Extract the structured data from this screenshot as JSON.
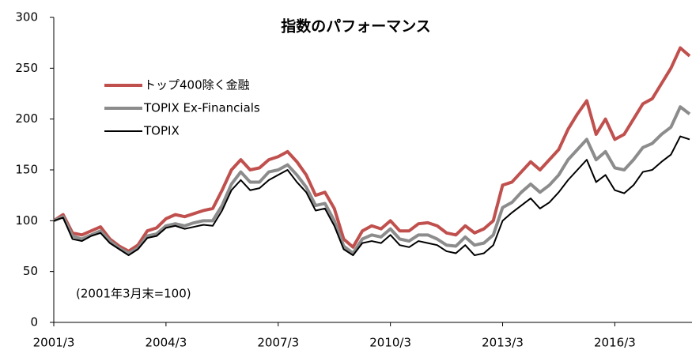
{
  "chart_data": {
    "type": "line",
    "title": "指数のパフォーマンス",
    "annotation": "(2001年3月末=100)",
    "x": [
      "2001/3",
      "2001/6",
      "2001/9",
      "2001/12",
      "2002/3",
      "2002/6",
      "2002/9",
      "2002/12",
      "2003/3",
      "2003/6",
      "2003/9",
      "2003/12",
      "2004/3",
      "2004/6",
      "2004/9",
      "2004/12",
      "2005/3",
      "2005/6",
      "2005/9",
      "2005/12",
      "2006/3",
      "2006/6",
      "2006/9",
      "2006/12",
      "2007/3",
      "2007/6",
      "2007/9",
      "2007/12",
      "2008/3",
      "2008/6",
      "2008/9",
      "2008/12",
      "2009/3",
      "2009/6",
      "2009/9",
      "2009/12",
      "2010/3",
      "2010/6",
      "2010/9",
      "2010/12",
      "2011/3",
      "2011/6",
      "2011/9",
      "2011/12",
      "2012/3",
      "2012/6",
      "2012/9",
      "2012/12",
      "2013/3",
      "2013/6",
      "2013/9",
      "2013/12",
      "2014/3",
      "2014/6",
      "2014/9",
      "2014/12",
      "2015/3",
      "2015/6",
      "2015/9",
      "2015/12",
      "2016/3",
      "2016/6",
      "2016/9",
      "2016/12",
      "2017/3",
      "2017/6",
      "2017/9",
      "2017/12",
      "2018/3"
    ],
    "xticks": [
      "2001/3",
      "2004/3",
      "2007/3",
      "2010/3",
      "2013/3",
      "2016/3"
    ],
    "ylim": [
      0,
      300
    ],
    "yticks": [
      0,
      50,
      100,
      150,
      200,
      250,
      300
    ],
    "legend": "upper left",
    "series": [
      {
        "name": "トップ400除く金融",
        "color": "#c0504d",
        "values": [
          100,
          106,
          88,
          86,
          90,
          94,
          82,
          75,
          70,
          76,
          90,
          93,
          102,
          106,
          104,
          107,
          110,
          112,
          130,
          150,
          160,
          150,
          152,
          160,
          163,
          168,
          158,
          145,
          125,
          128,
          112,
          82,
          74,
          90,
          95,
          92,
          100,
          90,
          90,
          97,
          98,
          95,
          88,
          86,
          95,
          88,
          92,
          100,
          135,
          138,
          148,
          158,
          150,
          160,
          170,
          190,
          205,
          218,
          185,
          200,
          180,
          185,
          200,
          215,
          220,
          235,
          250,
          270,
          262
        ]
      },
      {
        "name": "TOPIX Ex-Financials",
        "color": "#8c8c8c",
        "values": [
          100,
          104,
          85,
          82,
          86,
          90,
          80,
          73,
          68,
          73,
          85,
          87,
          95,
          97,
          95,
          98,
          100,
          100,
          115,
          136,
          148,
          138,
          138,
          148,
          150,
          155,
          145,
          133,
          115,
          117,
          100,
          75,
          68,
          82,
          86,
          84,
          92,
          82,
          80,
          86,
          86,
          82,
          76,
          75,
          84,
          76,
          78,
          86,
          113,
          118,
          128,
          136,
          128,
          135,
          145,
          160,
          170,
          180,
          160,
          168,
          152,
          150,
          160,
          172,
          176,
          185,
          192,
          212,
          205
        ]
      },
      {
        "name": "TOPIX",
        "color": "#000000",
        "values": [
          100,
          103,
          82,
          80,
          85,
          88,
          78,
          72,
          66,
          72,
          83,
          85,
          93,
          95,
          92,
          94,
          96,
          95,
          110,
          130,
          140,
          130,
          132,
          140,
          145,
          150,
          138,
          128,
          110,
          112,
          95,
          72,
          66,
          78,
          80,
          78,
          86,
          76,
          74,
          80,
          78,
          76,
          70,
          68,
          76,
          66,
          68,
          76,
          100,
          108,
          115,
          122,
          112,
          118,
          128,
          140,
          150,
          160,
          138,
          145,
          130,
          127,
          135,
          148,
          150,
          158,
          165,
          183,
          180
        ]
      }
    ]
  }
}
